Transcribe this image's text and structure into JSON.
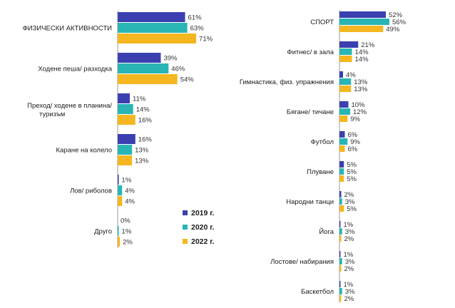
{
  "chart_data": [
    {
      "type": "bar",
      "orientation": "horizontal",
      "categories": [
        "ФИЗИЧЕСКИ АКТИВНОСТИ",
        "Ходене пеша/ разходка",
        "Преход/ ходене в планина/ туризъм",
        "Каране на колело",
        "Лов/ риболов",
        "Друго"
      ],
      "series": [
        {
          "name": "2019 г.",
          "values": [
            61,
            39,
            11,
            16,
            1,
            0
          ]
        },
        {
          "name": "2020 г.",
          "values": [
            63,
            46,
            14,
            13,
            4,
            1
          ]
        },
        {
          "name": "2022 г.",
          "values": [
            71,
            54,
            16,
            13,
            4,
            2
          ]
        }
      ],
      "value_suffix": "%",
      "xlim": [
        0,
        100
      ]
    },
    {
      "type": "bar",
      "orientation": "horizontal",
      "categories": [
        "СПОРТ",
        "Фитнес/ в зала",
        "Гимнастика, физ. упражнения",
        "Бягане/ тичане",
        "Футбол",
        "Плуване",
        "Народни танци",
        "Йога",
        "Лостове/ набирания",
        "Баскетбол"
      ],
      "series": [
        {
          "name": "2019 г.",
          "values": [
            52,
            21,
            4,
            10,
            6,
            5,
            2,
            1,
            1,
            1
          ]
        },
        {
          "name": "2020 г.",
          "values": [
            56,
            14,
            13,
            12,
            9,
            5,
            3,
            3,
            3,
            3
          ]
        },
        {
          "name": "2022 г.",
          "values": [
            49,
            14,
            13,
            9,
            6,
            5,
            5,
            2,
            2,
            2
          ]
        }
      ],
      "value_suffix": "%",
      "xlim": [
        0,
        100
      ]
    }
  ],
  "colors": {
    "s2019": "#3a40b0",
    "s2020": "#2ab5b5",
    "s2022": "#f5b620",
    "axis": "#9a9a9a"
  },
  "legend": {
    "items": [
      "2019 г.",
      "2020 г.",
      "2022 г."
    ]
  }
}
